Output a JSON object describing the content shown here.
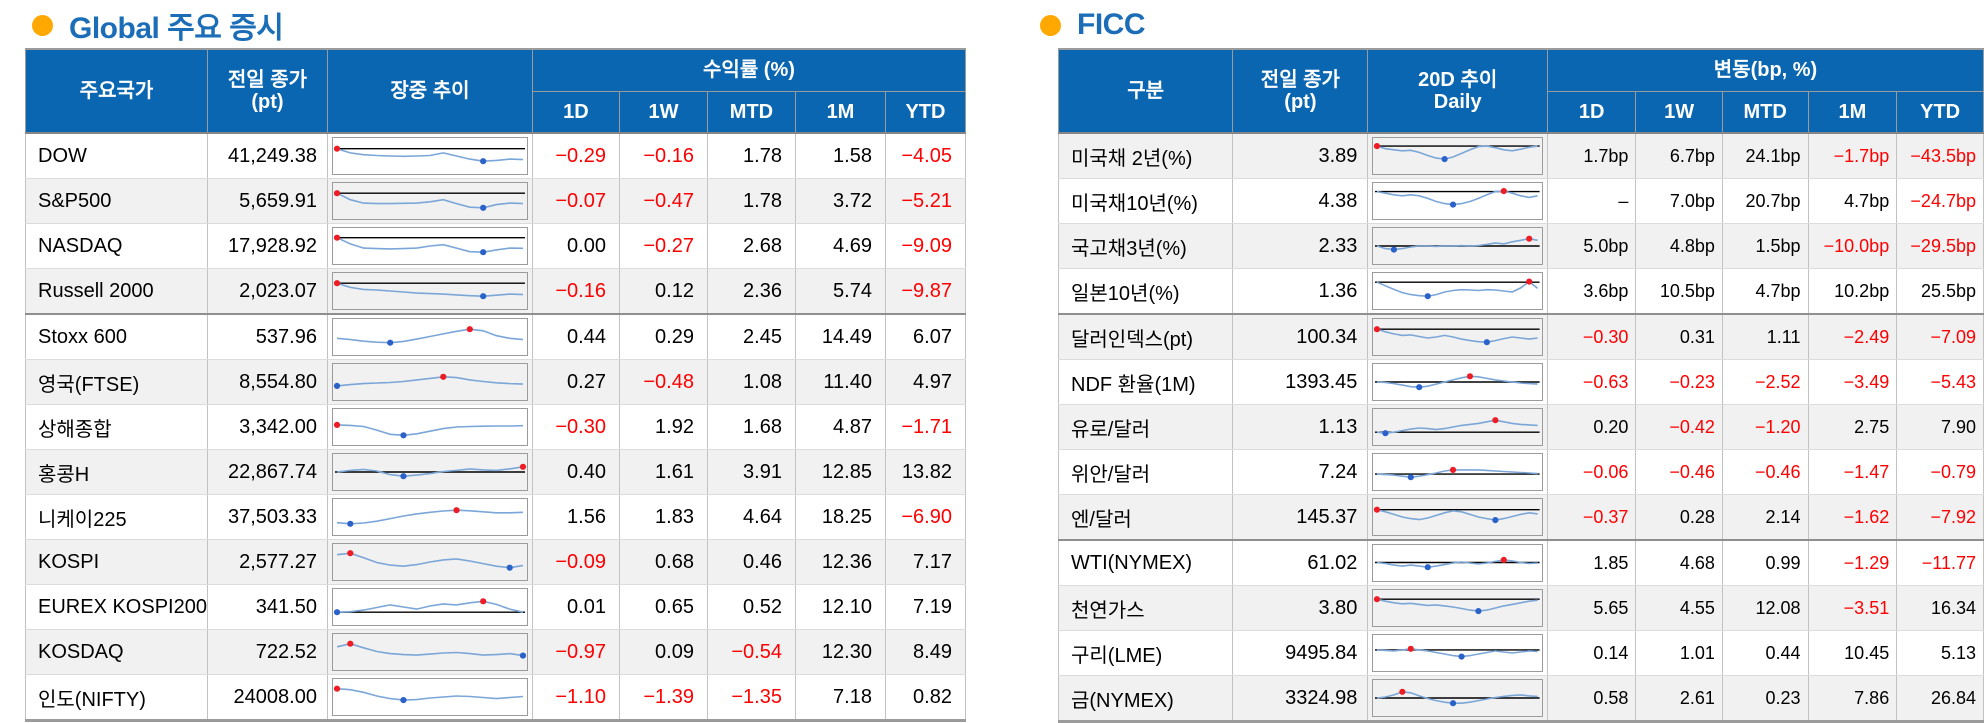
{
  "colors": {
    "header_bg": "#0a66b0",
    "title_color": "#1b6db8",
    "bullet_color": "#ffa800",
    "negative_color": "#fe0000",
    "spark_line": "#7ba6d8",
    "spark_max_dot": "#ee1c25",
    "spark_min_dot": "#2a62c9",
    "zebra": "#f1f1f1"
  },
  "left": {
    "title": "Global 주요 증시",
    "columns": {
      "name": "주요국가",
      "close_l1": "전일 종가",
      "close_l2": "(pt)",
      "trend_l1": "장중 추이",
      "trend_l2": "",
      "group": "수익률 (%)",
      "periods": [
        "1D",
        "1W",
        "MTD",
        "1M",
        "YTD"
      ]
    },
    "rows": [
      {
        "name": "DOW",
        "close": "41,249.38",
        "changes": [
          "−0.29",
          "−0.16",
          "1.78",
          "1.58",
          "−4.05"
        ],
        "group_end": false,
        "spark": {
          "p": [
            78,
            62,
            55,
            52,
            50,
            49,
            50,
            52,
            62,
            50,
            38,
            30,
            33,
            38,
            36
          ],
          "hi": 0,
          "lo": 11,
          "ref": true
        }
      },
      {
        "name": "S&P500",
        "close": "5,659.91",
        "changes": [
          "−0.07",
          "−0.47",
          "1.78",
          "3.72",
          "−5.21"
        ],
        "group_end": false,
        "spark": {
          "p": [
            80,
            55,
            42,
            40,
            40,
            41,
            42,
            47,
            55,
            40,
            26,
            24,
            36,
            42,
            40
          ],
          "hi": 0,
          "lo": 11,
          "ref": true
        }
      },
      {
        "name": "NASDAQ",
        "close": "17,928.92",
        "changes": [
          "0.00",
          "−0.27",
          "2.68",
          "4.69",
          "−9.09"
        ],
        "group_end": false,
        "spark": {
          "p": [
            82,
            58,
            42,
            40,
            39,
            40,
            42,
            50,
            55,
            42,
            28,
            26,
            35,
            42,
            41
          ],
          "hi": 0,
          "lo": 11,
          "ref": true
        }
      },
      {
        "name": "Russell 2000",
        "close": "2,023.07",
        "changes": [
          "−0.16",
          "0.12",
          "2.36",
          "5.74",
          "−9.87"
        ],
        "group_end": true,
        "spark": {
          "p": [
            80,
            64,
            56,
            54,
            50,
            46,
            42,
            40,
            38,
            35,
            32,
            30,
            34,
            38,
            36
          ],
          "hi": 0,
          "lo": 11,
          "ref": true
        }
      },
      {
        "name": "Stoxx 600",
        "close": "537.96",
        "changes": [
          "0.44",
          "0.29",
          "2.45",
          "14.49",
          "6.07"
        ],
        "group_end": false,
        "spark": {
          "p": [
            45,
            40,
            34,
            30,
            28,
            33,
            42,
            52,
            62,
            72,
            80,
            74,
            55,
            45,
            40
          ],
          "hi": 10,
          "lo": 4,
          "ref": false
        }
      },
      {
        "name": "영국(FTSE)",
        "close": "8,554.80",
        "changes": [
          "0.27",
          "−0.48",
          "1.08",
          "11.40",
          "4.97"
        ],
        "group_end": false,
        "spark": {
          "p": [
            35,
            40,
            44,
            46,
            48,
            52,
            58,
            64,
            70,
            67,
            58,
            52,
            47,
            44,
            42
          ],
          "hi": 8,
          "lo": 0,
          "ref": false
        }
      },
      {
        "name": "상해종합",
        "close": "3,342.00",
        "changes": [
          "−0.30",
          "1.92",
          "1.68",
          "4.87",
          "−1.71"
        ],
        "group_end": false,
        "spark": {
          "p": [
            58,
            56,
            52,
            38,
            22,
            18,
            24,
            34,
            44,
            50,
            52,
            53,
            54,
            54,
            55
          ],
          "hi": 0,
          "lo": 5,
          "ref": false
        }
      },
      {
        "name": "홍콩H",
        "close": "22,867.74",
        "changes": [
          "0.40",
          "1.61",
          "3.91",
          "12.85",
          "13.82"
        ],
        "group_end": false,
        "spark": {
          "p": [
            50,
            56,
            60,
            54,
            40,
            34,
            38,
            44,
            52,
            56,
            62,
            58,
            56,
            62,
            70
          ],
          "hi": 14,
          "lo": 5,
          "ref": true
        }
      },
      {
        "name": "니케이225",
        "close": "37,503.33",
        "changes": [
          "1.56",
          "1.83",
          "4.64",
          "18.25",
          "−6.90"
        ],
        "group_end": false,
        "spark": {
          "p": [
            28,
            24,
            27,
            34,
            44,
            54,
            62,
            68,
            73,
            76,
            74,
            70,
            66,
            66,
            68
          ],
          "hi": 9,
          "lo": 1,
          "ref": false
        }
      },
      {
        "name": "KOSPI",
        "close": "2,577.27",
        "changes": [
          "−0.09",
          "0.68",
          "0.46",
          "12.36",
          "7.17"
        ],
        "group_end": false,
        "spark": {
          "p": [
            78,
            84,
            66,
            48,
            38,
            34,
            40,
            50,
            58,
            62,
            54,
            44,
            34,
            28,
            36
          ],
          "hi": 1,
          "lo": 13,
          "ref": false
        }
      },
      {
        "name": "EUREX KOSPI200",
        "close": "341.50",
        "changes": [
          "0.01",
          "0.65",
          "0.52",
          "12.10",
          "7.19"
        ],
        "group_end": false,
        "spark": {
          "p": [
            30,
            32,
            38,
            48,
            58,
            50,
            42,
            54,
            62,
            58,
            66,
            72,
            60,
            42,
            30
          ],
          "hi": 11,
          "lo": 0,
          "ref": true
        }
      },
      {
        "name": "KOSDAQ",
        "close": "722.52",
        "changes": [
          "−0.97",
          "0.09",
          "−0.54",
          "12.30",
          "8.49"
        ],
        "group_end": false,
        "spark": {
          "p": [
            70,
            82,
            66,
            52,
            44,
            40,
            38,
            42,
            46,
            48,
            44,
            38,
            40,
            44,
            36
          ],
          "hi": 1,
          "lo": 14,
          "ref": false
        }
      },
      {
        "name": "인도(NIFTY)",
        "close": "24008.00",
        "changes": [
          "−1.10",
          "−1.39",
          "−1.35",
          "7.18",
          "0.82"
        ],
        "group_end": false,
        "spark": {
          "p": [
            82,
            78,
            68,
            54,
            44,
            38,
            40,
            46,
            50,
            54,
            52,
            48,
            44,
            48,
            52
          ],
          "hi": 0,
          "lo": 5,
          "ref": false
        }
      }
    ]
  },
  "right": {
    "title": "FICC",
    "columns": {
      "name": "구분",
      "close_l1": "전일 종가",
      "close_l2": "(pt)",
      "trend_l1": "20D 추이",
      "trend_l2": "Daily",
      "group": "변동(bp, %)",
      "periods": [
        "1D",
        "1W",
        "MTD",
        "1M",
        "YTD"
      ]
    },
    "rows": [
      {
        "name": "미국채 2년(%)",
        "close": "3.89",
        "changes": [
          "1.7bp",
          "6.7bp",
          "24.1bp",
          "−1.7bp",
          "−43.5bp"
        ],
        "group_end": false,
        "spark": {
          "p": [
            88,
            78,
            74,
            70,
            72,
            64,
            52,
            42,
            38,
            46,
            60,
            74,
            86,
            88,
            82,
            74,
            70,
            76,
            84,
            88
          ],
          "hi": 0,
          "lo": 8,
          "ref": true
        }
      },
      {
        "name": "미국채10년(%)",
        "close": "4.38",
        "changes": [
          "–",
          "7.0bp",
          "20.7bp",
          "4.7bp",
          "−24.7bp"
        ],
        "group_end": false,
        "spark": {
          "p": [
            86,
            80,
            74,
            70,
            74,
            70,
            60,
            48,
            40,
            36,
            40,
            48,
            60,
            74,
            86,
            88,
            80,
            70,
            64,
            70
          ],
          "hi": 15,
          "lo": 9,
          "ref": true
        }
      },
      {
        "name": "국고채3년(%)",
        "close": "2.33",
        "changes": [
          "5.0bp",
          "4.8bp",
          "1.5bp",
          "−10.0bp",
          "−29.5bp"
        ],
        "group_end": false,
        "spark": {
          "p": [
            50,
            40,
            36,
            40,
            46,
            50,
            50,
            48,
            50,
            50,
            52,
            50,
            52,
            56,
            62,
            58,
            66,
            72,
            78,
            72
          ],
          "hi": 18,
          "lo": 2,
          "ref": true
        }
      },
      {
        "name": "일본10년(%)",
        "close": "1.36",
        "changes": [
          "3.6bp",
          "10.5bp",
          "4.7bp",
          "10.2bp",
          "25.5bp"
        ],
        "group_end": true,
        "spark": {
          "p": [
            84,
            70,
            56,
            44,
            36,
            32,
            30,
            36,
            46,
            52,
            55,
            54,
            52,
            55,
            54,
            50,
            46,
            62,
            86,
            60
          ],
          "hi": 18,
          "lo": 6,
          "ref": true
        }
      },
      {
        "name": "달러인덱스(pt)",
        "close": "100.34",
        "changes": [
          "−0.30",
          "0.31",
          "1.11",
          "−2.49",
          "−7.09"
        ],
        "group_end": false,
        "spark": {
          "p": [
            80,
            70,
            62,
            56,
            58,
            52,
            46,
            50,
            56,
            50,
            42,
            36,
            32,
            30,
            36,
            44,
            50,
            46,
            42,
            46
          ],
          "hi": 0,
          "lo": 13,
          "ref": true
        }
      },
      {
        "name": "NDF 환율(1M)",
        "close": "1393.45",
        "changes": [
          "−0.63",
          "−0.23",
          "−2.52",
          "−3.49",
          "−5.43"
        ],
        "group_end": false,
        "spark": {
          "p": [
            50,
            48,
            44,
            38,
            32,
            30,
            34,
            42,
            50,
            58,
            66,
            72,
            70,
            64,
            58,
            54,
            50,
            46,
            44,
            42
          ],
          "hi": 11,
          "lo": 5,
          "ref": true
        }
      },
      {
        "name": "유로/달러",
        "close": "1.13",
        "changes": [
          "0.20",
          "−0.42",
          "−1.20",
          "2.75",
          "7.90"
        ],
        "group_end": false,
        "spark": {
          "p": [
            30,
            26,
            30,
            36,
            42,
            46,
            44,
            40,
            44,
            50,
            56,
            60,
            64,
            70,
            76,
            70,
            64,
            60,
            58,
            56
          ],
          "hi": 14,
          "lo": 1,
          "ref": true
        }
      },
      {
        "name": "위안/달러",
        "close": "7.24",
        "changes": [
          "−0.06",
          "−0.46",
          "−0.46",
          "−1.47",
          "−0.79"
        ],
        "group_end": false,
        "spark": {
          "p": [
            42,
            40,
            38,
            34,
            30,
            34,
            40,
            46,
            54,
            58,
            58,
            58,
            58,
            56,
            54,
            52,
            50,
            48,
            46,
            44
          ],
          "hi": 9,
          "lo": 4,
          "ref": true
        }
      },
      {
        "name": "엔/달러",
        "close": "145.37",
        "changes": [
          "−0.37",
          "0.28",
          "2.14",
          "−1.62",
          "−7.92"
        ],
        "group_end": true,
        "spark": {
          "p": [
            78,
            70,
            60,
            50,
            44,
            40,
            46,
            56,
            66,
            74,
            70,
            60,
            50,
            44,
            38,
            44,
            52,
            60,
            66,
            62
          ],
          "hi": 0,
          "lo": 14,
          "ref": true
        }
      },
      {
        "name": "WTI(NYMEX)",
        "close": "61.02",
        "changes": [
          "1.85",
          "4.68",
          "0.99",
          "−1.29",
          "−11.77"
        ],
        "group_end": false,
        "spark": {
          "p": [
            52,
            48,
            42,
            38,
            42,
            38,
            34,
            38,
            44,
            50,
            54,
            50,
            46,
            50,
            56,
            62,
            58,
            52,
            48,
            50
          ],
          "hi": 15,
          "lo": 6,
          "ref": true
        }
      },
      {
        "name": "천연가스",
        "close": "3.80",
        "changes": [
          "5.65",
          "4.55",
          "12.08",
          "−3.51",
          "16.34"
        ],
        "group_end": false,
        "spark": {
          "p": [
            84,
            76,
            70,
            66,
            68,
            64,
            60,
            62,
            58,
            54,
            48,
            42,
            38,
            42,
            50,
            58,
            64,
            70,
            76,
            80
          ],
          "hi": 0,
          "lo": 12,
          "ref": true
        }
      },
      {
        "name": "구리(LME)",
        "close": "9495.84",
        "changes": [
          "0.14",
          "1.01",
          "0.44",
          "10.45",
          "5.13"
        ],
        "group_end": false,
        "spark": {
          "p": [
            62,
            60,
            58,
            62,
            66,
            62,
            58,
            52,
            46,
            40,
            36,
            40,
            46,
            52,
            58,
            54,
            50,
            54,
            58,
            56
          ],
          "hi": 4,
          "lo": 10,
          "ref": true
        }
      },
      {
        "name": "금(NYMEX)",
        "close": "3324.98",
        "changes": [
          "0.58",
          "2.61",
          "0.23",
          "7.86",
          "26.84"
        ],
        "group_end": false,
        "spark": {
          "p": [
            50,
            54,
            62,
            74,
            70,
            58,
            48,
            40,
            34,
            30,
            30,
            34,
            40,
            46,
            52,
            56,
            60,
            62,
            58,
            56
          ],
          "hi": 3,
          "lo": 9,
          "ref": true
        }
      }
    ]
  }
}
